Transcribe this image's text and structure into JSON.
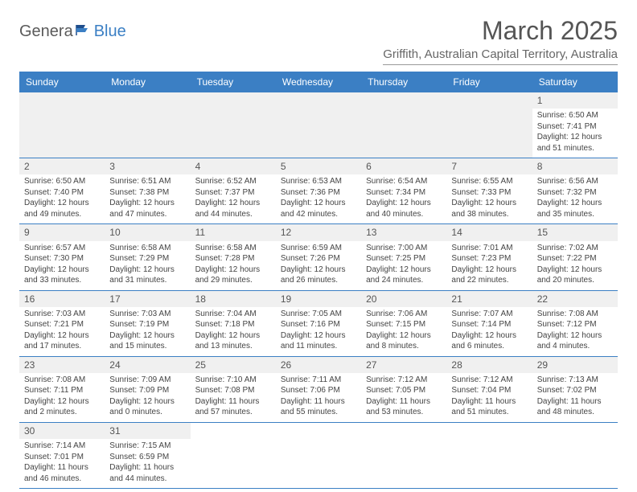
{
  "header": {
    "logo_text_1": "Genera",
    "logo_text_2": "Blue",
    "month_title": "March 2025",
    "location": "Griffith, Australian Capital Territory, Australia"
  },
  "styling": {
    "header_bg": "#3b7fc4",
    "header_fg": "#ffffff",
    "daynum_bg": "#f0f0f0",
    "border_color": "#3b7fc4",
    "logo_gray": "#5a5a5a",
    "logo_blue": "#3b7fc4",
    "body_text": "#444444"
  },
  "day_names": [
    "Sunday",
    "Monday",
    "Tuesday",
    "Wednesday",
    "Thursday",
    "Friday",
    "Saturday"
  ],
  "weeks": [
    [
      null,
      null,
      null,
      null,
      null,
      null,
      {
        "n": "1",
        "sr": "Sunrise: 6:50 AM",
        "ss": "Sunset: 7:41 PM",
        "d1": "Daylight: 12 hours",
        "d2": "and 51 minutes."
      }
    ],
    [
      {
        "n": "2",
        "sr": "Sunrise: 6:50 AM",
        "ss": "Sunset: 7:40 PM",
        "d1": "Daylight: 12 hours",
        "d2": "and 49 minutes."
      },
      {
        "n": "3",
        "sr": "Sunrise: 6:51 AM",
        "ss": "Sunset: 7:38 PM",
        "d1": "Daylight: 12 hours",
        "d2": "and 47 minutes."
      },
      {
        "n": "4",
        "sr": "Sunrise: 6:52 AM",
        "ss": "Sunset: 7:37 PM",
        "d1": "Daylight: 12 hours",
        "d2": "and 44 minutes."
      },
      {
        "n": "5",
        "sr": "Sunrise: 6:53 AM",
        "ss": "Sunset: 7:36 PM",
        "d1": "Daylight: 12 hours",
        "d2": "and 42 minutes."
      },
      {
        "n": "6",
        "sr": "Sunrise: 6:54 AM",
        "ss": "Sunset: 7:34 PM",
        "d1": "Daylight: 12 hours",
        "d2": "and 40 minutes."
      },
      {
        "n": "7",
        "sr": "Sunrise: 6:55 AM",
        "ss": "Sunset: 7:33 PM",
        "d1": "Daylight: 12 hours",
        "d2": "and 38 minutes."
      },
      {
        "n": "8",
        "sr": "Sunrise: 6:56 AM",
        "ss": "Sunset: 7:32 PM",
        "d1": "Daylight: 12 hours",
        "d2": "and 35 minutes."
      }
    ],
    [
      {
        "n": "9",
        "sr": "Sunrise: 6:57 AM",
        "ss": "Sunset: 7:30 PM",
        "d1": "Daylight: 12 hours",
        "d2": "and 33 minutes."
      },
      {
        "n": "10",
        "sr": "Sunrise: 6:58 AM",
        "ss": "Sunset: 7:29 PM",
        "d1": "Daylight: 12 hours",
        "d2": "and 31 minutes."
      },
      {
        "n": "11",
        "sr": "Sunrise: 6:58 AM",
        "ss": "Sunset: 7:28 PM",
        "d1": "Daylight: 12 hours",
        "d2": "and 29 minutes."
      },
      {
        "n": "12",
        "sr": "Sunrise: 6:59 AM",
        "ss": "Sunset: 7:26 PM",
        "d1": "Daylight: 12 hours",
        "d2": "and 26 minutes."
      },
      {
        "n": "13",
        "sr": "Sunrise: 7:00 AM",
        "ss": "Sunset: 7:25 PM",
        "d1": "Daylight: 12 hours",
        "d2": "and 24 minutes."
      },
      {
        "n": "14",
        "sr": "Sunrise: 7:01 AM",
        "ss": "Sunset: 7:23 PM",
        "d1": "Daylight: 12 hours",
        "d2": "and 22 minutes."
      },
      {
        "n": "15",
        "sr": "Sunrise: 7:02 AM",
        "ss": "Sunset: 7:22 PM",
        "d1": "Daylight: 12 hours",
        "d2": "and 20 minutes."
      }
    ],
    [
      {
        "n": "16",
        "sr": "Sunrise: 7:03 AM",
        "ss": "Sunset: 7:21 PM",
        "d1": "Daylight: 12 hours",
        "d2": "and 17 minutes."
      },
      {
        "n": "17",
        "sr": "Sunrise: 7:03 AM",
        "ss": "Sunset: 7:19 PM",
        "d1": "Daylight: 12 hours",
        "d2": "and 15 minutes."
      },
      {
        "n": "18",
        "sr": "Sunrise: 7:04 AM",
        "ss": "Sunset: 7:18 PM",
        "d1": "Daylight: 12 hours",
        "d2": "and 13 minutes."
      },
      {
        "n": "19",
        "sr": "Sunrise: 7:05 AM",
        "ss": "Sunset: 7:16 PM",
        "d1": "Daylight: 12 hours",
        "d2": "and 11 minutes."
      },
      {
        "n": "20",
        "sr": "Sunrise: 7:06 AM",
        "ss": "Sunset: 7:15 PM",
        "d1": "Daylight: 12 hours",
        "d2": "and 8 minutes."
      },
      {
        "n": "21",
        "sr": "Sunrise: 7:07 AM",
        "ss": "Sunset: 7:14 PM",
        "d1": "Daylight: 12 hours",
        "d2": "and 6 minutes."
      },
      {
        "n": "22",
        "sr": "Sunrise: 7:08 AM",
        "ss": "Sunset: 7:12 PM",
        "d1": "Daylight: 12 hours",
        "d2": "and 4 minutes."
      }
    ],
    [
      {
        "n": "23",
        "sr": "Sunrise: 7:08 AM",
        "ss": "Sunset: 7:11 PM",
        "d1": "Daylight: 12 hours",
        "d2": "and 2 minutes."
      },
      {
        "n": "24",
        "sr": "Sunrise: 7:09 AM",
        "ss": "Sunset: 7:09 PM",
        "d1": "Daylight: 12 hours",
        "d2": "and 0 minutes."
      },
      {
        "n": "25",
        "sr": "Sunrise: 7:10 AM",
        "ss": "Sunset: 7:08 PM",
        "d1": "Daylight: 11 hours",
        "d2": "and 57 minutes."
      },
      {
        "n": "26",
        "sr": "Sunrise: 7:11 AM",
        "ss": "Sunset: 7:06 PM",
        "d1": "Daylight: 11 hours",
        "d2": "and 55 minutes."
      },
      {
        "n": "27",
        "sr": "Sunrise: 7:12 AM",
        "ss": "Sunset: 7:05 PM",
        "d1": "Daylight: 11 hours",
        "d2": "and 53 minutes."
      },
      {
        "n": "28",
        "sr": "Sunrise: 7:12 AM",
        "ss": "Sunset: 7:04 PM",
        "d1": "Daylight: 11 hours",
        "d2": "and 51 minutes."
      },
      {
        "n": "29",
        "sr": "Sunrise: 7:13 AM",
        "ss": "Sunset: 7:02 PM",
        "d1": "Daylight: 11 hours",
        "d2": "and 48 minutes."
      }
    ],
    [
      {
        "n": "30",
        "sr": "Sunrise: 7:14 AM",
        "ss": "Sunset: 7:01 PM",
        "d1": "Daylight: 11 hours",
        "d2": "and 46 minutes."
      },
      {
        "n": "31",
        "sr": "Sunrise: 7:15 AM",
        "ss": "Sunset: 6:59 PM",
        "d1": "Daylight: 11 hours",
        "d2": "and 44 minutes."
      },
      null,
      null,
      null,
      null,
      null
    ]
  ]
}
